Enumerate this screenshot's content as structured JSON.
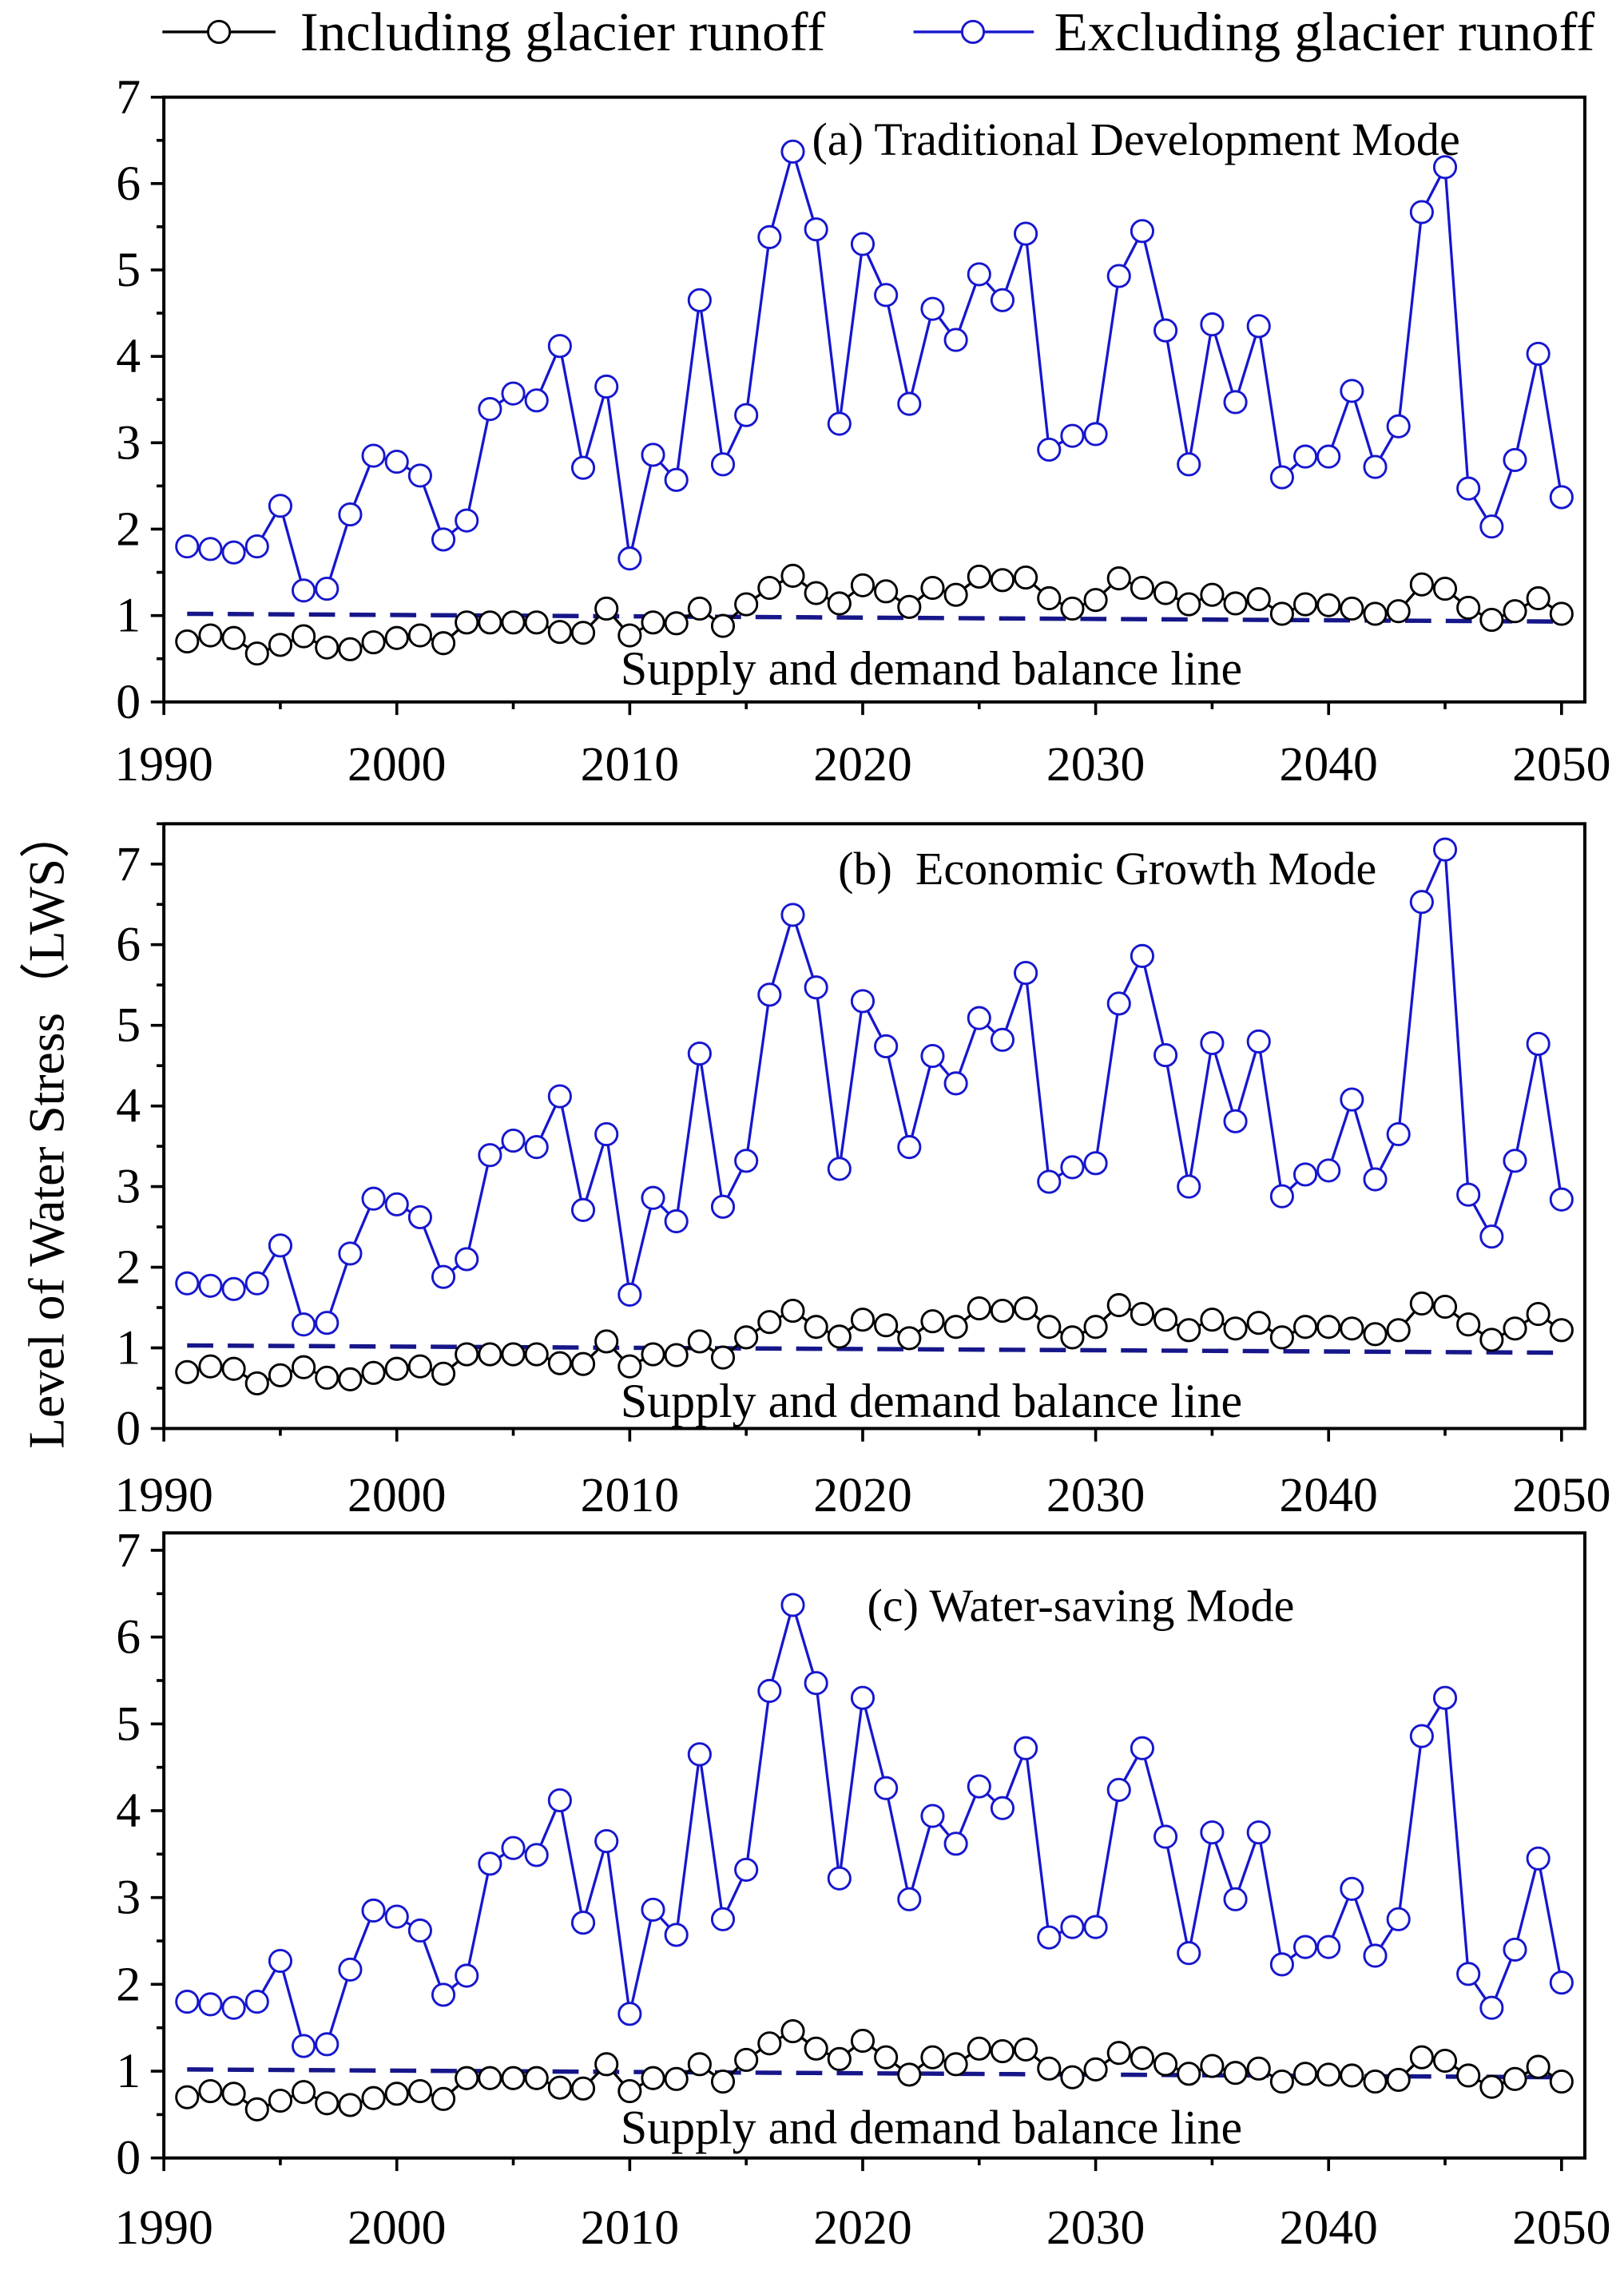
{
  "colors": {
    "including": "#000000",
    "excluding": "#1616cf",
    "balance_line": "#16168a",
    "marker_fill": "#ffffff"
  },
  "legend_position": "top",
  "chart_data": [
    {
      "type": "line",
      "title": "(a) Traditional Development Mode",
      "balance_label": "Supply and demand balance line",
      "xlabel": "",
      "ylabel": "",
      "xlim": [
        1990,
        2051
      ],
      "ylim": [
        0,
        7
      ],
      "xticks": [
        1990,
        2000,
        2010,
        2020,
        2030,
        2040,
        2050
      ],
      "yticks": [
        0,
        1,
        2,
        3,
        4,
        5,
        6,
        7
      ],
      "grid": false,
      "x": [
        1991,
        1992,
        1993,
        1994,
        1995,
        1996,
        1997,
        1998,
        1999,
        2000,
        2001,
        2002,
        2003,
        2004,
        2005,
        2006,
        2007,
        2008,
        2009,
        2010,
        2011,
        2012,
        2013,
        2014,
        2015,
        2016,
        2017,
        2018,
        2019,
        2020,
        2021,
        2022,
        2023,
        2024,
        2025,
        2026,
        2027,
        2028,
        2029,
        2030,
        2031,
        2032,
        2033,
        2034,
        2035,
        2036,
        2037,
        2038,
        2039,
        2040,
        2041,
        2042,
        2043,
        2044,
        2045,
        2046,
        2047,
        2048,
        2049,
        2050
      ],
      "series": [
        {
          "name": "Including glacier runoff",
          "color_key": "including",
          "values": [
            0.7,
            0.77,
            0.74,
            0.56,
            0.66,
            0.76,
            0.63,
            0.61,
            0.69,
            0.74,
            0.77,
            0.68,
            0.92,
            0.92,
            0.92,
            0.92,
            0.81,
            0.8,
            1.08,
            0.77,
            0.92,
            0.91,
            1.08,
            0.88,
            1.13,
            1.32,
            1.46,
            1.26,
            1.14,
            1.35,
            1.28,
            1.1,
            1.32,
            1.24,
            1.45,
            1.41,
            1.44,
            1.2,
            1.08,
            1.18,
            1.43,
            1.32,
            1.26,
            1.13,
            1.24,
            1.14,
            1.19,
            1.02,
            1.13,
            1.12,
            1.08,
            1.02,
            1.05,
            1.36,
            1.31,
            1.09,
            0.95,
            1.05,
            1.2,
            1.02
          ]
        },
        {
          "name": "Excluding glacier runoff",
          "color_key": "excluding",
          "values": [
            1.8,
            1.77,
            1.73,
            1.8,
            2.27,
            1.29,
            1.31,
            2.17,
            2.85,
            2.78,
            2.62,
            1.88,
            2.1,
            3.39,
            3.57,
            3.49,
            4.12,
            2.71,
            3.65,
            1.66,
            2.86,
            2.57,
            4.65,
            2.75,
            3.32,
            5.38,
            6.37,
            5.47,
            3.22,
            5.3,
            4.71,
            3.45,
            4.55,
            4.19,
            4.95,
            4.65,
            5.42,
            2.92,
            3.08,
            3.1,
            4.93,
            5.45,
            4.3,
            2.75,
            4.37,
            3.47,
            4.35,
            2.6,
            2.84,
            2.84,
            3.6,
            2.72,
            3.19,
            5.67,
            6.19,
            2.47,
            2.03,
            2.8,
            4.03,
            2.37
          ]
        }
      ],
      "balance_line": {
        "x": [
          1991,
          2050
        ],
        "y": [
          1.02,
          0.93
        ]
      }
    },
    {
      "type": "line",
      "title": "(b)  Economic Growth Mode",
      "balance_label": "Supply and demand balance line",
      "xlabel": "",
      "ylabel": "Level of Water Stress（LWS）",
      "xlim": [
        1990,
        2051
      ],
      "ylim": [
        0,
        7.5
      ],
      "xticks": [
        1990,
        2000,
        2010,
        2020,
        2030,
        2040,
        2050
      ],
      "yticks": [
        0,
        1,
        2,
        3,
        4,
        5,
        6,
        7
      ],
      "grid": false,
      "x": [
        1991,
        1992,
        1993,
        1994,
        1995,
        1996,
        1997,
        1998,
        1999,
        2000,
        2001,
        2002,
        2003,
        2004,
        2005,
        2006,
        2007,
        2008,
        2009,
        2010,
        2011,
        2012,
        2013,
        2014,
        2015,
        2016,
        2017,
        2018,
        2019,
        2020,
        2021,
        2022,
        2023,
        2024,
        2025,
        2026,
        2027,
        2028,
        2029,
        2030,
        2031,
        2032,
        2033,
        2034,
        2035,
        2036,
        2037,
        2038,
        2039,
        2040,
        2041,
        2042,
        2043,
        2044,
        2045,
        2046,
        2047,
        2048,
        2049,
        2050
      ],
      "series": [
        {
          "name": "Including glacier runoff",
          "color_key": "including",
          "values": [
            0.7,
            0.77,
            0.74,
            0.56,
            0.66,
            0.76,
            0.63,
            0.61,
            0.69,
            0.74,
            0.77,
            0.68,
            0.92,
            0.92,
            0.92,
            0.92,
            0.81,
            0.8,
            1.08,
            0.77,
            0.92,
            0.91,
            1.08,
            0.88,
            1.13,
            1.32,
            1.46,
            1.26,
            1.14,
            1.35,
            1.28,
            1.12,
            1.33,
            1.26,
            1.49,
            1.46,
            1.49,
            1.26,
            1.13,
            1.26,
            1.53,
            1.42,
            1.35,
            1.22,
            1.35,
            1.24,
            1.31,
            1.13,
            1.26,
            1.26,
            1.24,
            1.17,
            1.22,
            1.55,
            1.51,
            1.29,
            1.1,
            1.24,
            1.42,
            1.22
          ]
        },
        {
          "name": "Excluding glacier runoff",
          "color_key": "excluding",
          "values": [
            1.8,
            1.77,
            1.73,
            1.8,
            2.27,
            1.29,
            1.31,
            2.17,
            2.85,
            2.78,
            2.62,
            1.88,
            2.1,
            3.39,
            3.57,
            3.49,
            4.12,
            2.71,
            3.65,
            1.66,
            2.86,
            2.57,
            4.65,
            2.75,
            3.32,
            5.38,
            6.37,
            5.47,
            3.22,
            5.3,
            4.74,
            3.49,
            4.62,
            4.28,
            5.09,
            4.82,
            5.65,
            3.06,
            3.24,
            3.29,
            5.27,
            5.86,
            4.63,
            3.0,
            4.78,
            3.81,
            4.8,
            2.88,
            3.15,
            3.2,
            4.08,
            3.09,
            3.65,
            6.53,
            7.18,
            2.9,
            2.38,
            3.32,
            4.77,
            2.84
          ]
        }
      ],
      "balance_line": {
        "x": [
          1991,
          2050
        ],
        "y": [
          1.03,
          0.94
        ]
      }
    },
    {
      "type": "line",
      "title": "(c) Water-saving Mode",
      "balance_label": "Supply and demand balance line",
      "xlabel": "",
      "ylabel": "",
      "xlim": [
        1990,
        2051
      ],
      "ylim": [
        0,
        7.2
      ],
      "xticks": [
        1990,
        2000,
        2010,
        2020,
        2030,
        2040,
        2050
      ],
      "yticks": [
        0,
        1,
        2,
        3,
        4,
        5,
        6,
        7
      ],
      "grid": false,
      "x": [
        1991,
        1992,
        1993,
        1994,
        1995,
        1996,
        1997,
        1998,
        1999,
        2000,
        2001,
        2002,
        2003,
        2004,
        2005,
        2006,
        2007,
        2008,
        2009,
        2010,
        2011,
        2012,
        2013,
        2014,
        2015,
        2016,
        2017,
        2018,
        2019,
        2020,
        2021,
        2022,
        2023,
        2024,
        2025,
        2026,
        2027,
        2028,
        2029,
        2030,
        2031,
        2032,
        2033,
        2034,
        2035,
        2036,
        2037,
        2038,
        2039,
        2040,
        2041,
        2042,
        2043,
        2044,
        2045,
        2046,
        2047,
        2048,
        2049,
        2050
      ],
      "series": [
        {
          "name": "Including glacier runoff",
          "color_key": "including",
          "values": [
            0.7,
            0.77,
            0.74,
            0.56,
            0.66,
            0.76,
            0.63,
            0.61,
            0.69,
            0.74,
            0.77,
            0.68,
            0.92,
            0.92,
            0.92,
            0.92,
            0.81,
            0.8,
            1.08,
            0.77,
            0.92,
            0.91,
            1.08,
            0.88,
            1.13,
            1.32,
            1.46,
            1.26,
            1.14,
            1.35,
            1.16,
            0.96,
            1.16,
            1.08,
            1.26,
            1.23,
            1.25,
            1.03,
            0.93,
            1.02,
            1.21,
            1.15,
            1.08,
            0.97,
            1.06,
            0.98,
            1.03,
            0.88,
            0.97,
            0.96,
            0.95,
            0.88,
            0.9,
            1.16,
            1.12,
            0.95,
            0.82,
            0.91,
            1.05,
            0.88
          ]
        },
        {
          "name": "Excluding glacier runoff",
          "color_key": "excluding",
          "values": [
            1.8,
            1.77,
            1.73,
            1.8,
            2.27,
            1.29,
            1.31,
            2.17,
            2.85,
            2.78,
            2.62,
            1.88,
            2.1,
            3.39,
            3.57,
            3.49,
            4.12,
            2.71,
            3.65,
            1.66,
            2.86,
            2.57,
            4.65,
            2.75,
            3.32,
            5.38,
            6.37,
            5.47,
            3.22,
            5.3,
            4.26,
            2.98,
            3.94,
            3.62,
            4.28,
            4.03,
            4.72,
            2.54,
            2.66,
            2.66,
            4.24,
            4.72,
            3.7,
            2.36,
            3.75,
            2.98,
            3.75,
            2.23,
            2.43,
            2.43,
            3.1,
            2.33,
            2.75,
            4.86,
            5.3,
            2.12,
            1.73,
            2.4,
            3.45,
            2.02
          ]
        }
      ],
      "balance_line": {
        "x": [
          1991,
          2050
        ],
        "y": [
          1.02,
          0.93
        ]
      }
    }
  ]
}
